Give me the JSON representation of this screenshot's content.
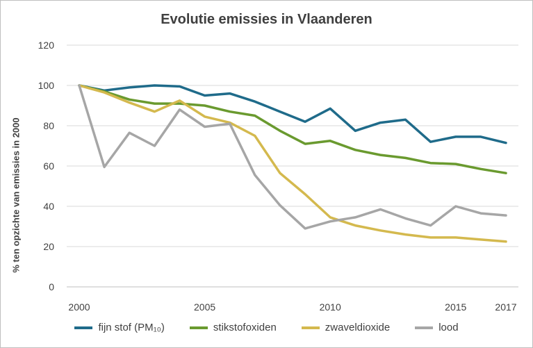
{
  "chart_data": {
    "type": "line",
    "title": "Evolutie emissies in Vlaanderen",
    "xlabel": "",
    "ylabel": "% ten opzichte van emissies in 2000",
    "x": [
      2000,
      2001,
      2002,
      2003,
      2004,
      2005,
      2006,
      2007,
      2008,
      2009,
      2010,
      2011,
      2012,
      2013,
      2014,
      2015,
      2016,
      2017
    ],
    "x_tick_labels": [
      "2000",
      "2005",
      "2010",
      "2015",
      "2017"
    ],
    "ylim": [
      0,
      120
    ],
    "y_tick_labels": [
      "0",
      "20",
      "40",
      "60",
      "80",
      "100",
      "120"
    ],
    "grid": "horizontal",
    "legend_position": "bottom",
    "series": [
      {
        "name": "fijn stof (PM₁₀)",
        "color": "#1f6b8a",
        "values": [
          100,
          97.5,
          99,
          100,
          99.5,
          95,
          96,
          92,
          87,
          82,
          88.5,
          77.5,
          81.5,
          83,
          72,
          74.5,
          74.5,
          71.5
        ]
      },
      {
        "name": "stikstofoxiden",
        "color": "#6a9a2f",
        "values": [
          100,
          97,
          93,
          91,
          91,
          90,
          87,
          85,
          77.5,
          71,
          72.5,
          68,
          65.5,
          64,
          61.5,
          61,
          58.5,
          56.5
        ]
      },
      {
        "name": "zwaveldioxide",
        "color": "#d4b94e",
        "values": [
          100,
          96.5,
          91.5,
          87,
          92.5,
          84.5,
          81.5,
          75,
          56.5,
          46,
          34.5,
          30.5,
          28,
          26,
          24.5,
          24.5,
          23.5,
          22.5
        ]
      },
      {
        "name": "lood",
        "color": "#a6a6a6",
        "values": [
          100,
          59.5,
          76.5,
          70,
          88,
          79.5,
          81,
          55.5,
          40.5,
          29,
          32.5,
          34.5,
          38.5,
          34,
          30.5,
          40,
          36.5,
          35.5
        ]
      }
    ]
  }
}
